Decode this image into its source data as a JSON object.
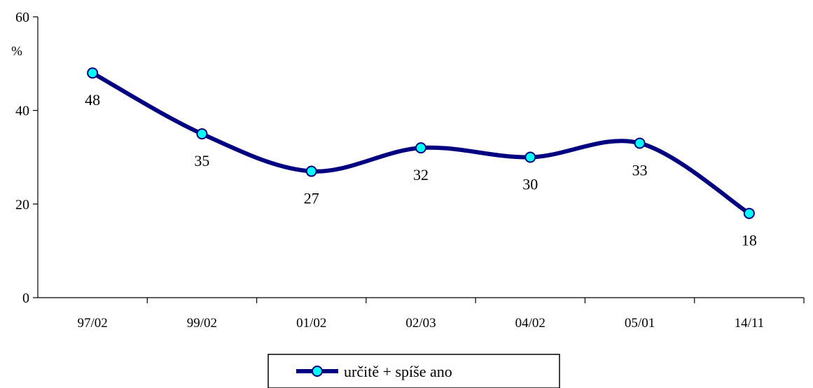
{
  "chart_data": {
    "type": "line",
    "categories": [
      "97/02",
      "99/02",
      "01/02",
      "02/03",
      "04/02",
      "05/01",
      "14/11"
    ],
    "series": [
      {
        "name": "určitě + spíše ano",
        "values": [
          48,
          35,
          27,
          32,
          30,
          33,
          18
        ]
      }
    ],
    "y_unit_label": "%",
    "ylim": [
      0,
      60
    ],
    "yticks": [
      0,
      20,
      40,
      60
    ],
    "smooth": true,
    "grid": false,
    "legend_position": "bottom-center",
    "colors": {
      "line": "#000080",
      "marker_fill": "#00FFFF",
      "marker_stroke": "#000080",
      "axis": "#000000"
    }
  }
}
